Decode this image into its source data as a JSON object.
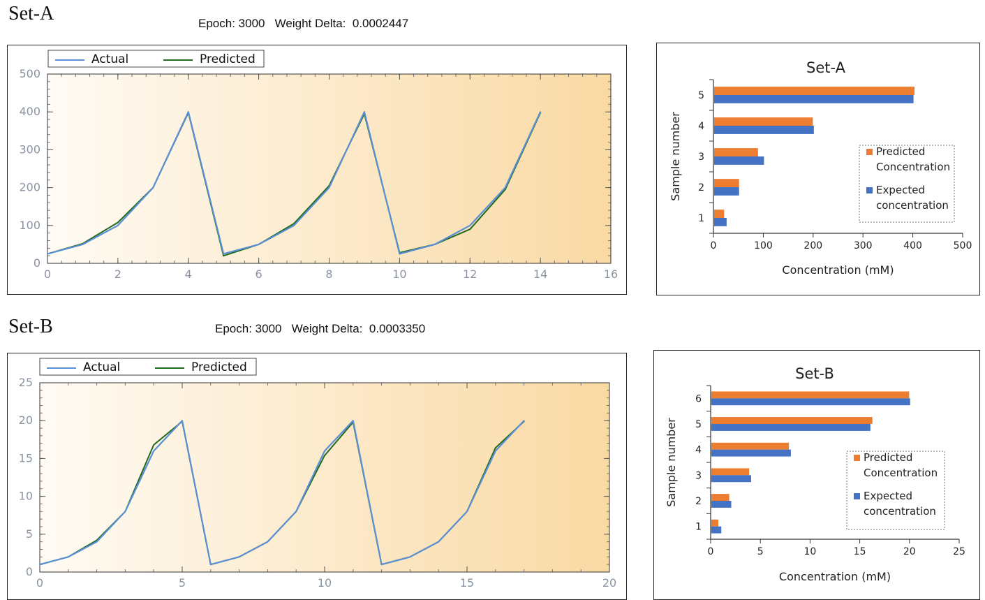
{
  "sections": [
    {
      "label": "Set-A",
      "epoch_label": "Epoch:",
      "epoch": "3000",
      "delta_label": "Weight Delta:",
      "delta": "0.0002447"
    },
    {
      "label": "Set-B",
      "epoch_label": "Epoch:",
      "epoch": "3000",
      "delta_label": "Weight Delta:",
      "delta": "0.0003350"
    }
  ],
  "colors": {
    "actual": "#5b8fd4",
    "predicted": "#1f6a1f",
    "predicted_bar": "#ed7d31",
    "expected_bar": "#4472c4",
    "gradient_start": "#fffbf4",
    "gradient_end": "#f9d9a3"
  },
  "chart_data": [
    {
      "id": "lineA",
      "type": "line",
      "xlim": [
        0,
        16
      ],
      "ylim": [
        0,
        500
      ],
      "xticks": [
        0,
        2,
        4,
        6,
        8,
        10,
        12,
        14,
        16
      ],
      "yticks": [
        0,
        100,
        200,
        300,
        400,
        500
      ],
      "x": [
        0,
        1,
        2,
        3,
        4,
        5,
        6,
        7,
        8,
        9,
        10,
        11,
        12,
        13,
        14
      ],
      "series": [
        {
          "name": "Actual",
          "values": [
            25,
            50,
            100,
            200,
            400,
            25,
            50,
            100,
            200,
            400,
            25,
            50,
            100,
            200,
            400
          ]
        },
        {
          "name": "Predicted",
          "values": [
            25,
            52,
            108,
            200,
            398,
            20,
            50,
            105,
            205,
            395,
            28,
            50,
            90,
            195,
            398
          ]
        }
      ],
      "legend": "top-left"
    },
    {
      "id": "barA",
      "type": "bar",
      "orientation": "horizontal",
      "title": "Set-A",
      "xlabel": "Concentration (mM)",
      "ylabel": "Sample number",
      "xlim": [
        0,
        500
      ],
      "xticks": [
        0,
        100,
        200,
        300,
        400,
        500
      ],
      "categories": [
        "1",
        "2",
        "3",
        "4",
        "5"
      ],
      "series": [
        {
          "name": "Predicted Concentration",
          "values": [
            20,
            50,
            88,
            198,
            402
          ]
        },
        {
          "name": "Expected concentration",
          "values": [
            25,
            50,
            100,
            200,
            400
          ]
        }
      ],
      "legend_lines": [
        [
          "Predicted",
          "Concentration"
        ],
        [
          "Expected",
          "concentration"
        ]
      ],
      "legend": "right"
    },
    {
      "id": "lineB",
      "type": "line",
      "xlim": [
        0,
        20
      ],
      "ylim": [
        0,
        25
      ],
      "xticks": [
        0,
        5,
        10,
        15,
        20
      ],
      "yticks": [
        0,
        5,
        10,
        15,
        20,
        25
      ],
      "x": [
        0,
        1,
        2,
        3,
        4,
        5,
        6,
        7,
        8,
        9,
        10,
        11,
        12,
        13,
        14,
        15,
        16,
        17
      ],
      "series": [
        {
          "name": "Actual",
          "values": [
            1,
            2,
            4,
            8,
            16,
            20,
            1,
            2,
            4,
            8,
            16,
            20,
            1,
            2,
            4,
            8,
            16,
            20
          ]
        },
        {
          "name": "Predicted",
          "values": [
            1,
            2,
            4.2,
            8,
            16.8,
            19.9,
            1,
            2,
            4,
            8,
            15.4,
            19.8,
            1,
            2,
            4,
            8,
            16.4,
            19.9
          ]
        }
      ],
      "legend": "top-left"
    },
    {
      "id": "barB",
      "type": "bar",
      "orientation": "horizontal",
      "title": "Set-B",
      "xlabel": "Concentration (mM)",
      "ylabel": "Sample number",
      "xlim": [
        0,
        25
      ],
      "xticks": [
        0,
        5,
        10,
        15,
        20,
        25
      ],
      "categories": [
        "1",
        "2",
        "3",
        "4",
        "5",
        "6"
      ],
      "series": [
        {
          "name": "Predicted Concentration",
          "values": [
            0.7,
            1.8,
            3.8,
            7.8,
            16.2,
            19.9
          ]
        },
        {
          "name": "Expected concentration",
          "values": [
            1,
            2,
            4,
            8,
            16,
            20
          ]
        }
      ],
      "legend_lines": [
        [
          "Predicted",
          "Concentration"
        ],
        [
          "Expected",
          "concentration"
        ]
      ],
      "legend": "right"
    }
  ]
}
